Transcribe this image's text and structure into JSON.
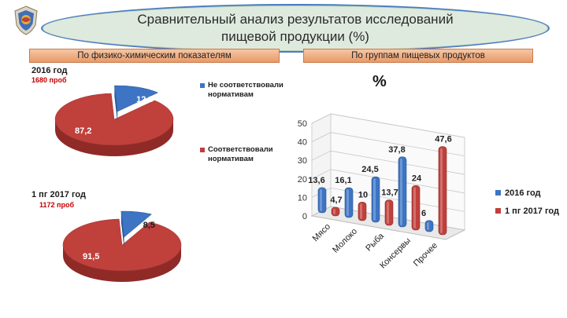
{
  "header": {
    "title_line1": "Сравнительный анализ результатов исследований",
    "title_line2": "пищевой продукции (%)"
  },
  "banners": {
    "left": "По физико-химическим показателям",
    "right": "По группам пищевых продуктов"
  },
  "colors": {
    "blue": "#3d74c4",
    "red": "#c0403c",
    "accent_orange": "#e89a6a"
  },
  "chart_data": [
    {
      "type": "pie",
      "title": "2016 год",
      "subtitle": "1680 проб",
      "categories": [
        "Не соответствовали нормативам",
        "Соответствовали нормативам"
      ],
      "values": [
        12.8,
        87.2
      ],
      "value_labels": [
        "12,8",
        "87,2"
      ]
    },
    {
      "type": "pie",
      "title": "1 пг 2017 год",
      "subtitle": "1172 проб",
      "categories": [
        "Не соответствовали нормативам",
        "Соответствовали нормативам"
      ],
      "values": [
        8.5,
        91.5
      ],
      "value_labels": [
        "8,5",
        "91,5"
      ]
    },
    {
      "type": "bar",
      "title": "%",
      "categories": [
        "Мясо",
        "Молоко",
        "Рыба",
        "Консервы",
        "Прочее"
      ],
      "series": [
        {
          "name": "2016 год",
          "values": [
            13.6,
            16.1,
            24.5,
            37.8,
            6
          ],
          "labels": [
            "13,6",
            "16,1",
            "24,5",
            "37,8",
            "6"
          ]
        },
        {
          "name": "1 пг 2017 год",
          "values": [
            4.7,
            10,
            13.7,
            24,
            47.6
          ],
          "labels": [
            "4,7",
            "10",
            "13,7",
            "24",
            "47,6"
          ]
        }
      ],
      "ylim": [
        0,
        50
      ],
      "yticks": [
        "0",
        "10",
        "20",
        "30",
        "40",
        "50"
      ],
      "grid": true,
      "legend": "right"
    }
  ],
  "legend_left": {
    "item1": "Не соответствовали",
    "item1b": "нормативам",
    "item2": "Соответствовали",
    "item2b": "нормативам"
  }
}
